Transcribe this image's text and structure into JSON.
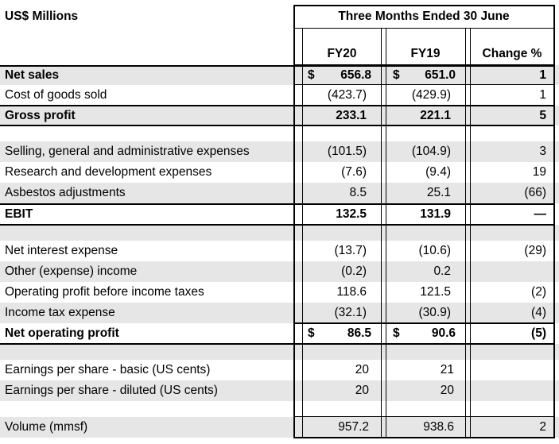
{
  "unit_label": "US$ Millions",
  "period_header": "Three Months Ended 30 June",
  "columns": {
    "fy20": "FY20",
    "fy19": "FY19",
    "change": "Change %"
  },
  "currency": "$",
  "rows": [
    {
      "label": "Net sales",
      "fy20": "656.8",
      "fy19": "651.0",
      "change": "1"
    },
    {
      "label": "Cost of goods sold",
      "fy20": "(423.7)",
      "fy19": "(429.9)",
      "change": "1"
    },
    {
      "label": "Gross profit",
      "fy20": "233.1",
      "fy19": "221.1",
      "change": "5"
    },
    {
      "label": "Selling, general and administrative expenses",
      "fy20": "(101.5)",
      "fy19": "(104.9)",
      "change": "3"
    },
    {
      "label": "Research and development expenses",
      "fy20": "(7.6)",
      "fy19": "(9.4)",
      "change": "19"
    },
    {
      "label": "Asbestos adjustments",
      "fy20": "8.5",
      "fy19": "25.1",
      "change": "(66)"
    },
    {
      "label": "EBIT",
      "fy20": "132.5",
      "fy19": "131.9",
      "change": "—"
    },
    {
      "label": "Net interest expense",
      "fy20": "(13.7)",
      "fy19": "(10.6)",
      "change": "(29)"
    },
    {
      "label": "Other (expense) income",
      "fy20": "(0.2)",
      "fy19": "0.2",
      "change": ""
    },
    {
      "label": "Operating profit before income taxes",
      "fy20": "118.6",
      "fy19": "121.5",
      "change": "(2)"
    },
    {
      "label": "Income tax expense",
      "fy20": "(32.1)",
      "fy19": "(30.9)",
      "change": "(4)"
    },
    {
      "label": "Net operating profit",
      "fy20": "86.5",
      "fy19": "90.6",
      "change": "(5)"
    },
    {
      "label": "Earnings per share - basic (US cents)",
      "fy20": "20",
      "fy19": "21",
      "change": ""
    },
    {
      "label": "Earnings per share - diluted (US cents)",
      "fy20": "20",
      "fy19": "20",
      "change": ""
    },
    {
      "label": "Volume (mmsf)",
      "fy20": "957.2",
      "fy19": "938.6",
      "change": "2"
    }
  ],
  "colors": {
    "shade": "#e6e6e6",
    "rule": "#000000"
  }
}
